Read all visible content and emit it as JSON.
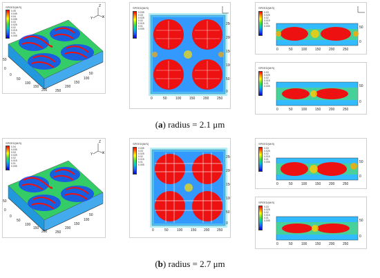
{
  "captions": [
    {
      "letter": "a",
      "open": "(",
      "close": ")",
      "text": " radius = 2.1 μm"
    },
    {
      "letter": "b",
      "open": "(",
      "close": ")",
      "text": " radius = 2.7 μm"
    }
  ],
  "legend_title": "SPEED(M/S)",
  "rows": [
    {
      "iso_legend": [
        "0.05",
        "0.045",
        "0.04",
        "0.035",
        "0.03",
        "0.025",
        "0.02",
        "0.015",
        "0.01",
        "0.005"
      ],
      "top_legend": [
        "0.035",
        "0.03",
        "0.025",
        "0.02",
        "0.015",
        "0.01",
        "0.005"
      ],
      "side1_legend": [
        "0.03",
        "0.025",
        "0.02",
        "0.015",
        "0.01",
        "0.005"
      ],
      "side2_legend": [
        "0.03",
        "0.025",
        "0.02",
        "0.015",
        "0.01",
        "0.005"
      ],
      "iso_ticks_front": [
        "0",
        "50",
        "100",
        "150",
        "200",
        "250"
      ],
      "iso_ticks_side": [
        "50",
        "100",
        "150",
        "200",
        "250"
      ],
      "iso_ticks_z": [
        "0",
        "50"
      ],
      "top_ticks_x": [
        "0",
        "50",
        "100",
        "150",
        "200",
        "250"
      ],
      "top_ticks_y": [
        "250",
        "200",
        "150",
        "100",
        "50",
        "0"
      ],
      "side_ticks_x": [
        "0",
        "50",
        "100",
        "150",
        "200",
        "250"
      ],
      "side_ticks_y": [
        "50",
        "0"
      ]
    },
    {
      "iso_legend": [
        "0.04",
        "0.035",
        "0.03",
        "0.025",
        "0.02",
        "0.015",
        "0.01",
        "0.005"
      ],
      "top_legend": [
        "0.035",
        "0.03",
        "0.025",
        "0.02",
        "0.015",
        "0.01",
        "0.005"
      ],
      "side1_legend": [
        "0.03",
        "0.025",
        "0.02",
        "0.015",
        "0.01",
        "0.005"
      ],
      "side2_legend": [
        "0.03",
        "0.025",
        "0.02",
        "0.015",
        "0.01",
        "0.005"
      ],
      "iso_ticks_front": [
        "0",
        "50",
        "100",
        "150",
        "200",
        "250"
      ],
      "iso_ticks_side": [
        "50",
        "100",
        "150",
        "200",
        "250"
      ],
      "iso_ticks_z": [
        "0",
        "50"
      ],
      "top_ticks_x": [
        "0",
        "50",
        "100",
        "150",
        "200",
        "250"
      ],
      "top_ticks_y": [
        "250",
        "200",
        "150",
        "100",
        "50",
        "0"
      ],
      "side_ticks_x": [
        "0",
        "50",
        "100",
        "150",
        "200",
        "250"
      ],
      "side_ticks_y": [
        "50",
        "0"
      ]
    }
  ],
  "axis_letters": {
    "x": "X",
    "y": "Y",
    "z": "Z"
  }
}
